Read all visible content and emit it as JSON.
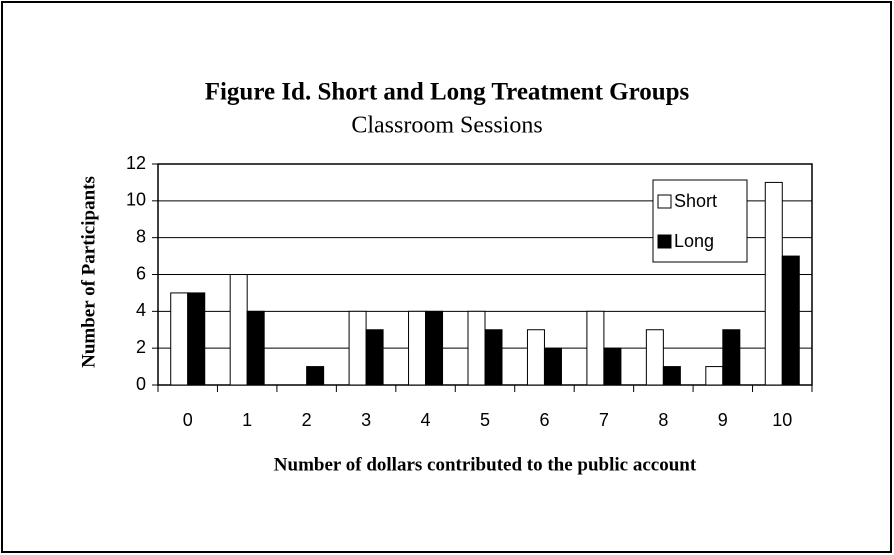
{
  "chart_data": {
    "type": "bar",
    "title": "Figure Id.  Short and Long Treatment Groups",
    "subtitle": "Classroom Sessions",
    "x_label": "Number of dollars contributed to the public account",
    "y_label": "Number of  Participants",
    "categories": [
      "0",
      "1",
      "2",
      "3",
      "4",
      "5",
      "6",
      "7",
      "8",
      "9",
      "10"
    ],
    "series": [
      {
        "name": "Short",
        "color": "#ffffff",
        "values": [
          5,
          6,
          0,
          4,
          4,
          4,
          3,
          4,
          3,
          1,
          11
        ]
      },
      {
        "name": "Long",
        "color": "#000000",
        "values": [
          5,
          4,
          1,
          3,
          4,
          3,
          2,
          2,
          1,
          3,
          7
        ]
      }
    ],
    "ylim": [
      0,
      12
    ],
    "yticks": [
      0,
      2,
      4,
      6,
      8,
      10,
      12
    ],
    "grid": true,
    "legend": "upper right"
  }
}
